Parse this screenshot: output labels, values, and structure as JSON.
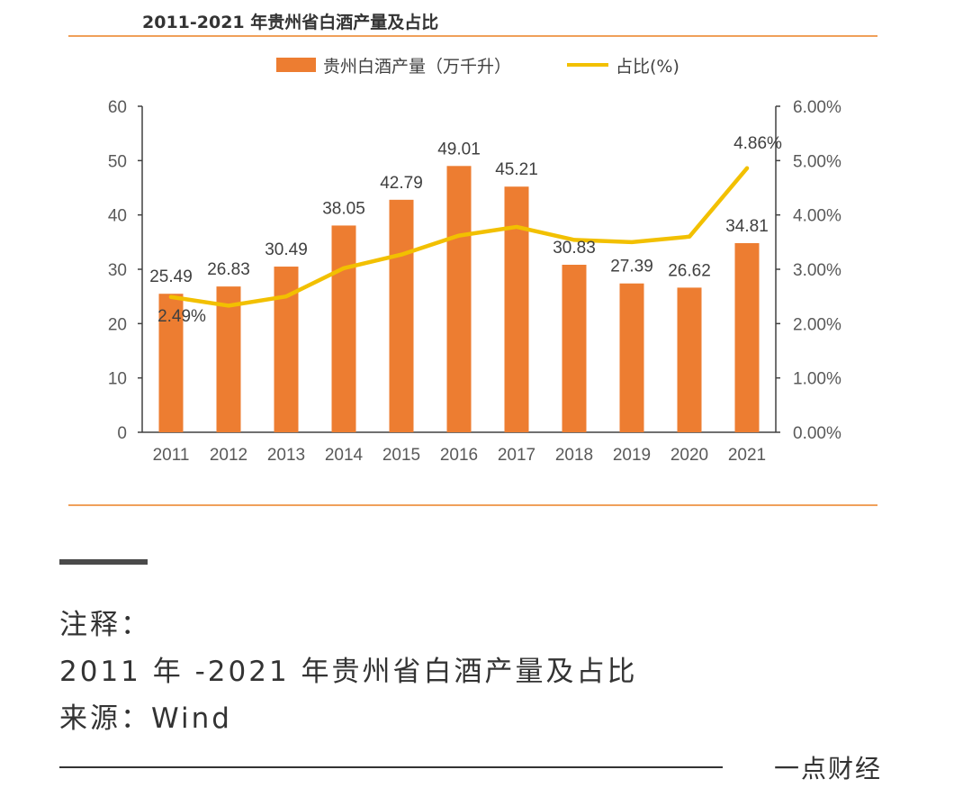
{
  "chart_data": {
    "type": "bar",
    "title": "2011-2021 年贵州省白酒产量及占比",
    "categories": [
      "2011",
      "2012",
      "2013",
      "2014",
      "2015",
      "2016",
      "2017",
      "2018",
      "2019",
      "2020",
      "2021"
    ],
    "series": [
      {
        "name": "贵州白酒产量（万千升）",
        "type": "bar",
        "axis": "left",
        "color": "#ED7D31",
        "values": [
          25.49,
          26.83,
          30.49,
          38.05,
          42.79,
          49.01,
          45.21,
          30.83,
          27.39,
          26.62,
          34.81
        ],
        "labels": [
          "25.49",
          "26.83",
          "30.49",
          "38.05",
          "42.79",
          "49.01",
          "45.21",
          "30.83",
          "27.39",
          "26.62",
          "34.81"
        ]
      },
      {
        "name": "占比(%)",
        "type": "line",
        "axis": "right",
        "color": "#F2C000",
        "values": [
          2.49,
          2.33,
          2.5,
          3.02,
          3.27,
          3.62,
          3.78,
          3.54,
          3.5,
          3.6,
          4.86
        ],
        "labeled_points": [
          {
            "index": 0,
            "text": "2.49%"
          },
          {
            "index": 10,
            "text": "4.86%"
          }
        ]
      }
    ],
    "y_left": {
      "ylim": [
        0,
        60
      ],
      "ticks": [
        0,
        10,
        20,
        30,
        40,
        50,
        60
      ],
      "tick_labels": [
        "0",
        "10",
        "20",
        "30",
        "40",
        "50",
        "60"
      ]
    },
    "y_right": {
      "ylim": [
        0,
        6
      ],
      "ticks": [
        0,
        1,
        2,
        3,
        4,
        5,
        6
      ],
      "tick_labels": [
        "0.00%",
        "1.00%",
        "2.00%",
        "3.00%",
        "4.00%",
        "5.00%",
        "6.00%"
      ]
    },
    "grid": false,
    "legend_position": "top-center"
  },
  "colors": {
    "accent_rule": "#F0A05A",
    "axis": "#404040"
  },
  "notes": {
    "heading": "注释：",
    "line1": "2011 年 -2021 年贵州省白酒产量及占比",
    "line2": "来源：Wind"
  },
  "brand": "一点财经"
}
